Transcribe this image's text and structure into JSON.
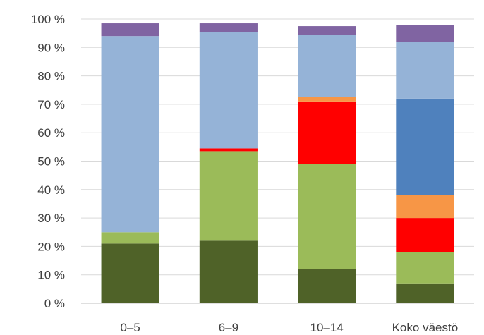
{
  "chart_data": {
    "type": "bar",
    "stacked": true,
    "categories": [
      "0–5",
      "6–9",
      "10–14",
      "Koko väestö"
    ],
    "series": [
      {
        "color": "#4f6228",
        "values": [
          21,
          22,
          12,
          7
        ]
      },
      {
        "color": "#9bbb59",
        "values": [
          4,
          31.5,
          37,
          11
        ]
      },
      {
        "color": "#ff0000",
        "values": [
          0,
          1,
          22,
          12
        ]
      },
      {
        "color": "#f79646",
        "values": [
          0,
          0,
          1.5,
          8
        ]
      },
      {
        "color": "#4f81bd",
        "values": [
          0,
          0,
          0,
          34
        ]
      },
      {
        "color": "#95b3d7",
        "values": [
          69,
          41,
          22,
          20
        ]
      },
      {
        "color": "#8064a2",
        "values": [
          4.5,
          3,
          3,
          6
        ]
      }
    ],
    "yticks": [
      "0 %",
      "10 %",
      "20 %",
      "30 %",
      "40 %",
      "50 %",
      "60 %",
      "70 %",
      "80 %",
      "90 %",
      "100 %"
    ],
    "ylim": [
      0,
      100
    ],
    "grid": true,
    "legend": false
  }
}
